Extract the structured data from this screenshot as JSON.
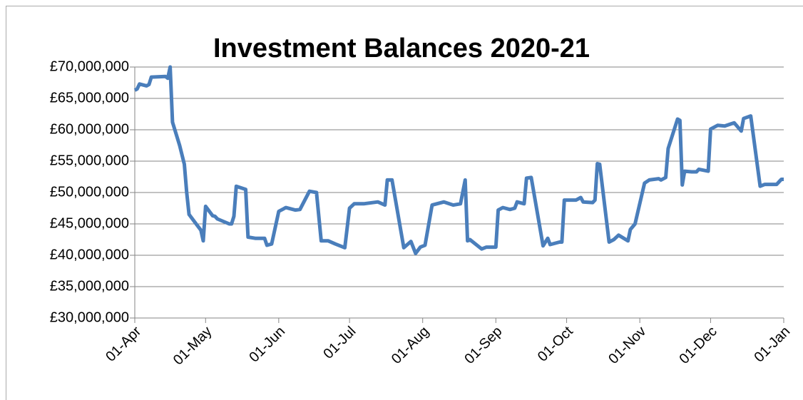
{
  "chart_data": {
    "type": "line",
    "title": "Investment Balances  2020-21",
    "color": "#4a7ebb",
    "grid": true,
    "x": [
      "01-Apr",
      "02-Apr",
      "03-Apr",
      "06-Apr",
      "07-Apr",
      "08-Apr",
      "14-Apr",
      "15-Apr",
      "16-Apr",
      "17-Apr",
      "20-Apr",
      "22-Apr",
      "23-Apr",
      "24-Apr",
      "27-Apr",
      "29-Apr",
      "30-Apr",
      "01-May",
      "04-May",
      "05-May",
      "06-May",
      "11-May",
      "12-May",
      "13-May",
      "14-May",
      "18-May",
      "19-May",
      "22-May",
      "26-May",
      "27-May",
      "29-May",
      "01-Jun",
      "03-Jun",
      "04-Jun",
      "08-Jun",
      "10-Jun",
      "14-Jun",
      "17-Jun",
      "19-Jun",
      "22-Jun",
      "25-Jun",
      "29-Jun",
      "01-Jul",
      "03-Jul",
      "07-Jul",
      "13-Jul",
      "16-Jul",
      "17-Jul",
      "19-Jul",
      "24-Jul",
      "27-Jul",
      "29-Jul",
      "31-Jul",
      "02-Aug",
      "05-Aug",
      "10-Aug",
      "14-Aug",
      "17-Aug",
      "19-Aug",
      "20-Aug",
      "21-Aug",
      "26-Aug",
      "28-Aug",
      "01-Sep",
      "02-Sep",
      "04-Sep",
      "07-Sep",
      "09-Sep",
      "10-Sep",
      "13-Sep",
      "14-Sep",
      "16-Sep",
      "21-Sep",
      "23-Sep",
      "24-Sep",
      "28-Sep",
      "29-Sep",
      "30-Sep",
      "05-Oct",
      "07-Oct",
      "08-Oct",
      "12-Oct",
      "13-Oct",
      "14-Oct",
      "15-Oct",
      "19-Oct",
      "21-Oct",
      "23-Oct",
      "27-Oct",
      "28-Oct",
      "30-Oct",
      "03-Nov",
      "05-Nov",
      "09-Nov",
      "10-Nov",
      "12-Nov",
      "13-Nov",
      "17-Nov",
      "18-Nov",
      "19-Nov",
      "20-Nov",
      "23-Nov",
      "25-Nov",
      "26-Nov",
      "30-Nov",
      "01-Dec",
      "03-Dec",
      "04-Dec",
      "07-Dec",
      "11-Dec",
      "14-Dec",
      "15-Dec",
      "18-Dec",
      "22-Dec",
      "24-Dec",
      "29-Dec",
      "30-Dec",
      "31-Dec",
      "01-Jan"
    ],
    "values": [
      66300000,
      66500000,
      67300000,
      67000000,
      67200000,
      68400000,
      68500000,
      68200000,
      70000000,
      61200000,
      57500000,
      54500000,
      50000000,
      46500000,
      45000000,
      44000000,
      42300000,
      47800000,
      46300000,
      46200000,
      45800000,
      45000000,
      45000000,
      46200000,
      51000000,
      50500000,
      42900000,
      42700000,
      42700000,
      41600000,
      41800000,
      47000000,
      47400000,
      47600000,
      47200000,
      47300000,
      50200000,
      50000000,
      42300000,
      42300000,
      41800000,
      41200000,
      47500000,
      48200000,
      48200000,
      48500000,
      48000000,
      52000000,
      52000000,
      41200000,
      42200000,
      40300000,
      41300000,
      41600000,
      48000000,
      48500000,
      48000000,
      48200000,
      52000000,
      42300000,
      42500000,
      41000000,
      41300000,
      41300000,
      47200000,
      47600000,
      47300000,
      47500000,
      48500000,
      48200000,
      52300000,
      52400000,
      41500000,
      42700000,
      41700000,
      42100000,
      42100000,
      48800000,
      48800000,
      49200000,
      48500000,
      48400000,
      48800000,
      54600000,
      54500000,
      42100000,
      42500000,
      43200000,
      42300000,
      44100000,
      45000000,
      51500000,
      52000000,
      52200000,
      52000000,
      52400000,
      57000000,
      61700000,
      61500000,
      51200000,
      53400000,
      53300000,
      53300000,
      53700000,
      53400000,
      60100000,
      60500000,
      60700000,
      60600000,
      61100000,
      59800000,
      61800000,
      62200000,
      51000000,
      51300000,
      51300000,
      51700000,
      52100000,
      52100000
    ],
    "xlim": [
      "01-Apr",
      "01-Jan"
    ],
    "xticks": [
      "01-Apr",
      "01-May",
      "01-Jun",
      "01-Jul",
      "01-Aug",
      "01-Sep",
      "01-Oct",
      "01-Nov",
      "01-Dec",
      "01-Jan"
    ],
    "ylim": [
      30000000,
      70000000
    ],
    "yticks": [
      {
        "value": 30000000,
        "label": "£30,000,000"
      },
      {
        "value": 35000000,
        "label": "£35,000,000"
      },
      {
        "value": 40000000,
        "label": "£40,000,000"
      },
      {
        "value": 45000000,
        "label": "£45,000,000"
      },
      {
        "value": 50000000,
        "label": "£50,000,000"
      },
      {
        "value": 55000000,
        "label": "£55,000,000"
      },
      {
        "value": 60000000,
        "label": "£60,000,000"
      },
      {
        "value": 65000000,
        "label": "£65,000,000"
      },
      {
        "value": 70000000,
        "label": "£70,000,000"
      }
    ]
  }
}
